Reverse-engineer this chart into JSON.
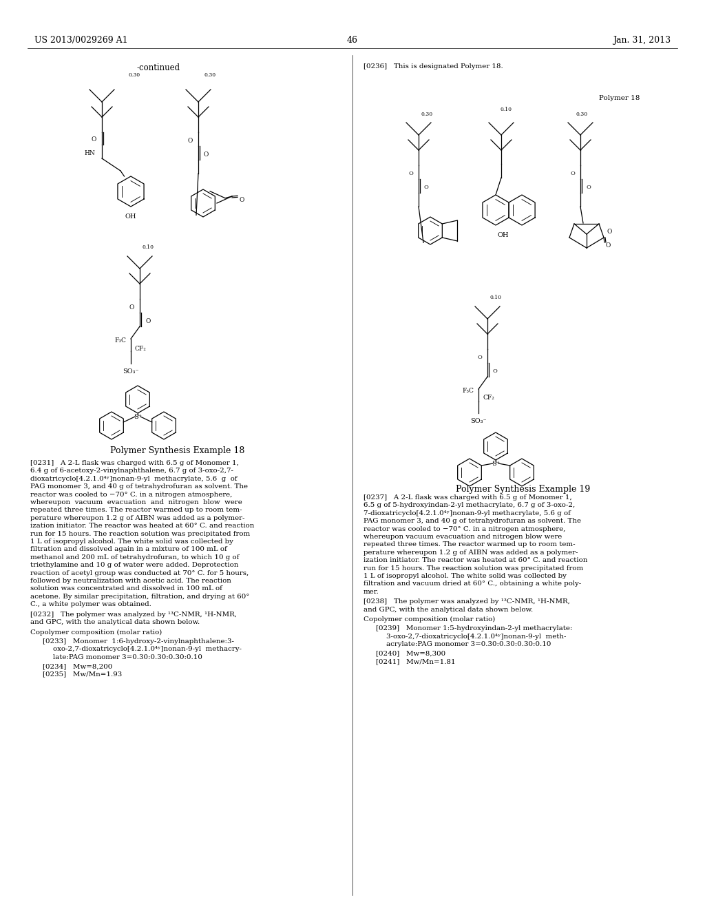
{
  "page_header_left": "US 2013/0029269 A1",
  "page_header_right": "Jan. 31, 2013",
  "page_number": "46",
  "continued_label": "-continued",
  "background_color": "#ffffff",
  "text_color": "#000000",
  "left_section_title": "Polymer Synthesis Example 18",
  "right_section_title": "Polymer Synthesis Example 19",
  "polymer18_label": "Polymer 18",
  "p0231": "[0231]   A 2-L flask was charged with 6.5 g of Monomer 1, 6.4 g of 6-acetoxy-2-vinylnaphthalene, 6.7 g of 3-oxo-2,7-dioxatricyclo[4.2.1.0⁴ʸ]nonan-9-yl methacrylate, 5.6 g of PAG monomer 3, and 40 g of tetrahydrofuran as solvent. The reactor was cooled to −70° C. in a nitrogen atmosphere, whereupon vacuum evacuation and nitrogen blow were repeated three times. The reactor warmed up to room tem-perature whereupon 1.2 g of AIBN was added as a polymer-ization initiator. The reactor was heated at 60° C. and reaction run for 15 hours. The reaction solution was precipitated from 1 L of isopropyl alcohol. The white solid was collected by filtration and dissolved again in a mixture of 100 mL of methanol and 200 mL of tetrahydrofuran, to which 10 g of triethylamine and 10 g of water were added. Deprotection reaction of acetyl group was conducted at 70° C. for 5 hours, followed by neutralization with acetic acid. The reaction solution was concentrated and dissolved in 100 mL of acetone. By similar precipitation, filtration, and drying at 60° C., a white polymer was obtained.",
  "p0232": "[0232]   The polymer was analyzed by ¹³C-NMR, ¹H-NMR, and GPC, with the analytical data shown below.",
  "copolymer_label": "Copolymer composition (molar ratio)",
  "p0233": "[0233]   Monomer   1:6-hydroxy-2-vinylnaphthalene:3-",
  "p0233b": "oxo-2,7-dioxatricyclo[4.2.1.0⁴ʸ]nonan-9-yl  methacry-",
  "p0233c": "late:PAG monomer 3=0.30:0.30:0.30:0.10",
  "p0234": "[0234]   Mw=8,200",
  "p0235": "[0235]   Mw/Mn=1.93",
  "p0236": "[0236]   This is designated Polymer 18.",
  "p0237_lines": [
    "[0237]   A 2-L flask was charged with 6.5 g of Monomer 1,",
    "6.5 g of 5-hydroxyindan-2-yl methacrylate, 6.7 g of 3-oxo-2,",
    "7-dioxatricyclo[4.2.1.0⁴ʸ]nonan-9-yl methacrylate, 5.6 g of",
    "PAG monomer 3, and 40 g of tetrahydrofuran as solvent. The",
    "reactor was cooled to −70° C. in a nitrogen atmosphere,",
    "whereupon vacuum evacuation and nitrogen blow were",
    "repeated three times. The reactor warmed up to room tem-",
    "perature whereupon 1.2 g of AIBN was added as a polymer-",
    "ization initiator. The reactor was heated at 60° C. and reaction",
    "run for 15 hours. The reaction solution was precipitated from",
    "1 L of isopropyl alcohol. The white solid was collected by",
    "filtration and vacuum dried at 60° C., obtaining a white poly-",
    "mer."
  ],
  "p0238": "[0238]   The polymer was analyzed by ¹³C-NMR, ¹H-NMR, and GPC, with the analytical data shown below.",
  "p0239": "[0239]   Monomer 1:5-hydroxyindan-2-yl methacrylate:",
  "p0239b": "3-oxo-2,7-dioxatricyclo[4.2.1.0⁴ʸ]nonan-9-yl  meth-",
  "p0239c": "acrylate:PAG monomer 3=0.30:0.30:0.30:0.10",
  "p0240": "[0240]   Mw=8,300",
  "p0241": "[0241]   Mw/Mn=1.81"
}
